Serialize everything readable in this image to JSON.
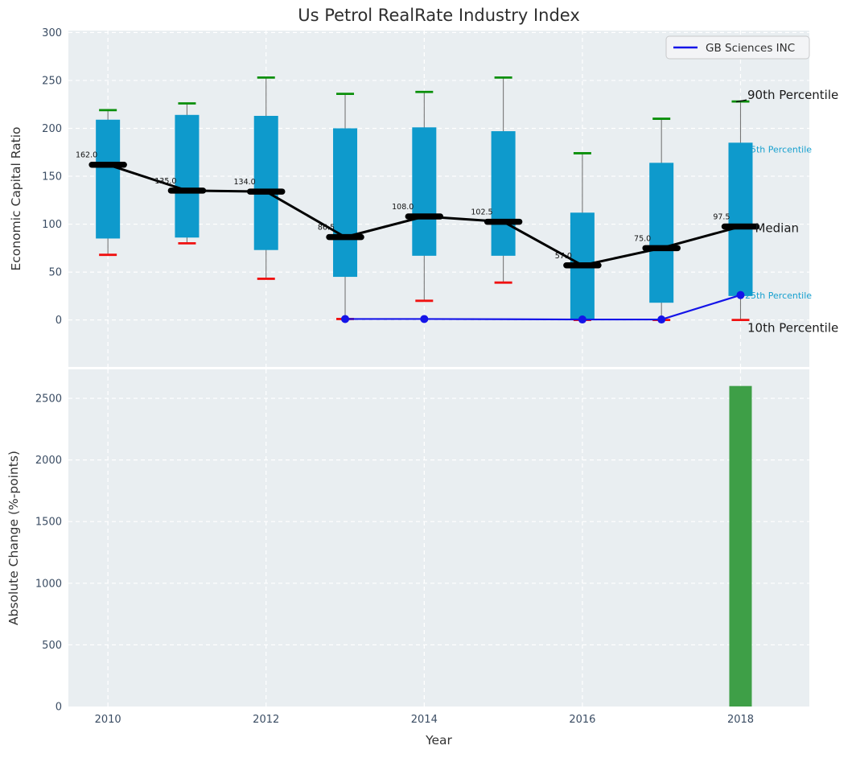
{
  "title": "Us Petrol RealRate Industry Index",
  "chart_data": [
    {
      "type": "box-percentile-bar",
      "title": "Us Petrol RealRate Industry Index",
      "ylabel": "Economic Capital Ratio",
      "xlabel": "Year",
      "x": [
        2010,
        2011,
        2012,
        2013,
        2014,
        2015,
        2016,
        2017,
        2018
      ],
      "series": [
        {
          "name": "90th Percentile",
          "values": [
            219,
            226,
            253,
            236,
            238,
            253,
            174,
            210,
            228
          ]
        },
        {
          "name": "75th Percentile",
          "values": [
            209,
            214,
            213,
            200,
            201,
            197,
            112,
            164,
            185
          ]
        },
        {
          "name": "Median",
          "values": [
            162.0,
            135.0,
            134.0,
            86.5,
            108.0,
            102.5,
            57.0,
            75.0,
            97.5
          ]
        },
        {
          "name": "25th Percentile",
          "values": [
            85,
            86,
            73,
            45,
            67,
            67,
            0,
            18,
            25
          ]
        },
        {
          "name": "10th Percentile",
          "values": [
            68,
            80,
            43,
            1,
            20,
            39,
            0,
            0,
            0
          ]
        }
      ],
      "median_labels": [
        "162.0",
        "135.0",
        "134.0",
        "86.5",
        "108.0",
        "102.5",
        "57.0",
        "75.0",
        "97.5"
      ],
      "company_line": {
        "name": "GB Sciences INC",
        "x": [
          2013,
          2014,
          2016,
          2017,
          2018
        ],
        "y": [
          1,
          1,
          0.5,
          0.5,
          26
        ]
      },
      "right_labels": {
        "p90": "90th Percentile",
        "p75": "75th Percentile",
        "median": "Median",
        "p25": "25th Percentile",
        "p10": "10th Percentile"
      },
      "legend": [
        "GB Sciences INC"
      ],
      "legend_position": "upper right",
      "yticks": [
        0,
        50,
        100,
        150,
        200,
        250,
        300
      ],
      "xticks": [
        2010,
        2012,
        2014,
        2016,
        2018
      ],
      "ylim": [
        -49,
        302
      ],
      "xlim": [
        2009.5,
        2018.87
      ],
      "grid": true
    },
    {
      "type": "bar",
      "ylabel": "Absolute Change (%-points)",
      "xlabel": "Year",
      "x": [
        2018
      ],
      "values": [
        2600
      ],
      "yticks": [
        0,
        500,
        1000,
        1500,
        2000,
        2500
      ],
      "xticks": [
        2010,
        2012,
        2014,
        2016,
        2018
      ],
      "ylim": [
        0,
        2735
      ],
      "xlim": [
        2009.5,
        2018.87
      ],
      "grid": true
    }
  ],
  "colors": {
    "bar_cyan": "#0e9acc",
    "cap_green": "#0a8f0a",
    "cap_red": "#f01010",
    "median_black": "#000000",
    "company_blue": "#1414e8",
    "change_bar_green": "#3e9f47",
    "plot_bg": "#e9eef1",
    "grid": "#ffffff",
    "tick": "#3a4c63",
    "axis_label": "#333333",
    "annotation_cyan": "#17a0cf",
    "whisker": "#777777",
    "legend_bg": "#f3f4f6",
    "legend_border": "#c8c9cb"
  }
}
